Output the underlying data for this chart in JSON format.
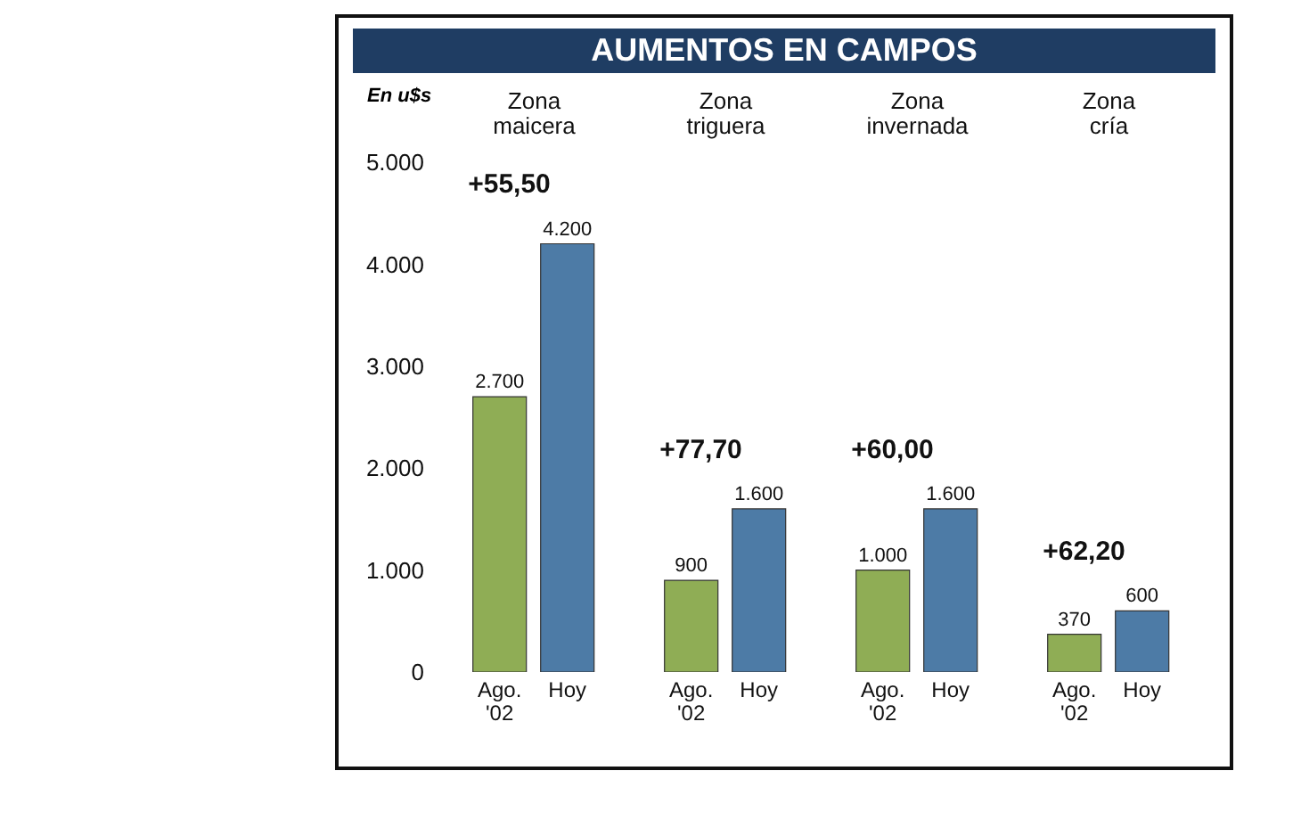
{
  "chart_data": {
    "type": "bar",
    "title": "AUMENTOS EN CAMPOS",
    "ylabel": "En u$s",
    "categories": [
      "Zona maicera",
      "Zona triguera",
      "Zona invernada",
      "Zona cría"
    ],
    "series": [
      {
        "name": "Ago. '02",
        "color": "#8fad55",
        "values": [
          2700,
          900,
          1000,
          370
        ],
        "value_labels": [
          "2.700",
          "900",
          "1.000",
          "370"
        ]
      },
      {
        "name": "Hoy",
        "color": "#4d7ba6",
        "values": [
          4200,
          1600,
          1600,
          600
        ],
        "value_labels": [
          "4.200",
          "1.600",
          "1.600",
          "600"
        ]
      }
    ],
    "ylim": [
      0,
      5000
    ],
    "yticks": [
      {
        "value": 0,
        "label": "0"
      },
      {
        "value": 1000,
        "label": "1.000"
      },
      {
        "value": 2000,
        "label": "2.000"
      },
      {
        "value": 3000,
        "label": "3.000"
      },
      {
        "value": 4000,
        "label": "4.000"
      },
      {
        "value": 5000,
        "label": "5.000"
      }
    ],
    "grid": false,
    "legend": false,
    "annotations": [
      "+55,50",
      "+77,70",
      "+60,00",
      "+62,20"
    ]
  }
}
